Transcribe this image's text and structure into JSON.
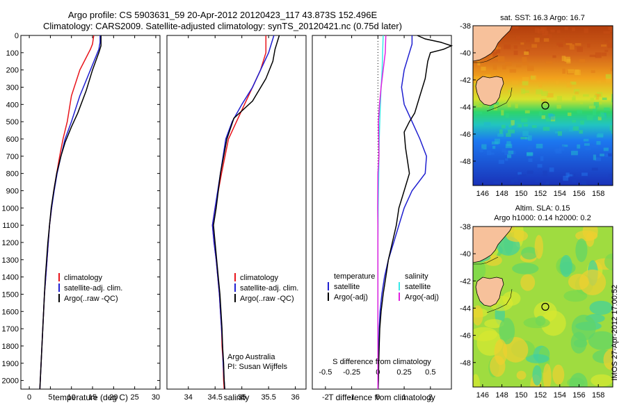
{
  "title": {
    "line1": "Argo profile: CS 5903631_59 20-Apr-2012 20120423_117 43.873S 152.496E",
    "line2": "Climatology: CARS2009. Satellite-adjusted climatology: synTS_20120421.nc (0.75d later)"
  },
  "colors": {
    "climatology": "#e8141b",
    "satellite": "#1f1fd0",
    "argo": "#000000",
    "salinity_satellite": "#38e8e8",
    "salinity_argo": "#e020e0"
  },
  "credits": {
    "line1": "Argo Australia",
    "line2": "PI: Susan Wijffels"
  },
  "stamp": "IMOS 27-Apr-2012 17:00:52",
  "chart_data": [
    {
      "id": "temperature",
      "type": "line",
      "xlabel": "temperature (deg C)",
      "ylabel": "",
      "xlim": [
        -2,
        31
      ],
      "ylim": [
        2050,
        0
      ],
      "xticks": [
        0,
        5,
        10,
        15,
        20,
        25,
        30
      ],
      "yticks": [
        0,
        100,
        200,
        300,
        400,
        500,
        600,
        700,
        800,
        900,
        1000,
        1100,
        1200,
        1300,
        1400,
        1500,
        1600,
        1700,
        1800,
        1900,
        2000
      ],
      "legend": [
        "climatology",
        "satellite-adj. clim.",
        "Argo(..raw -QC)"
      ],
      "series": [
        {
          "name": "climatology",
          "color": "#e8141b",
          "points": [
            [
              15.3,
              0
            ],
            [
              15.0,
              50
            ],
            [
              14.5,
              80
            ],
            [
              12.0,
              200
            ],
            [
              10.0,
              350
            ],
            [
              9.0,
              500
            ],
            [
              8.0,
              600
            ],
            [
              7.2,
              700
            ],
            [
              6.5,
              800
            ],
            [
              5.8,
              900
            ],
            [
              5.3,
              1000
            ],
            [
              4.8,
              1100
            ],
            [
              4.5,
              1200
            ],
            [
              4.2,
              1300
            ],
            [
              3.9,
              1400
            ],
            [
              3.6,
              1500
            ],
            [
              3.4,
              1600
            ],
            [
              3.2,
              1700
            ],
            [
              3.0,
              1800
            ],
            [
              2.8,
              1900
            ],
            [
              2.6,
              2000
            ],
            [
              2.5,
              2050
            ]
          ]
        },
        {
          "name": "satellite-adj. clim.",
          "color": "#1f1fd0",
          "points": [
            [
              16.8,
              0
            ],
            [
              16.8,
              40
            ],
            [
              16.5,
              80
            ],
            [
              14.5,
              200
            ],
            [
              12.0,
              350
            ],
            [
              10.0,
              500
            ],
            [
              8.5,
              600
            ],
            [
              7.5,
              700
            ],
            [
              6.6,
              800
            ],
            [
              5.9,
              900
            ],
            [
              5.3,
              1000
            ],
            [
              4.8,
              1100
            ],
            [
              4.5,
              1200
            ],
            [
              4.2,
              1300
            ],
            [
              3.9,
              1400
            ],
            [
              3.6,
              1500
            ],
            [
              3.4,
              1600
            ],
            [
              3.2,
              1700
            ],
            [
              3.0,
              1800
            ],
            [
              2.8,
              1900
            ],
            [
              2.6,
              2000
            ],
            [
              2.5,
              2050
            ]
          ]
        },
        {
          "name": "Argo(..raw -QC)",
          "color": "#000000",
          "points": [
            [
              17.0,
              0
            ],
            [
              17.0,
              60
            ],
            [
              16.5,
              100
            ],
            [
              15.0,
              200
            ],
            [
              13.5,
              320
            ],
            [
              11.5,
              450
            ],
            [
              10.0,
              530
            ],
            [
              8.5,
              620
            ],
            [
              7.5,
              700
            ],
            [
              6.5,
              800
            ],
            [
              5.8,
              900
            ],
            [
              5.2,
              1000
            ],
            [
              4.8,
              1100
            ],
            [
              4.4,
              1200
            ],
            [
              4.1,
              1300
            ],
            [
              3.8,
              1400
            ],
            [
              3.6,
              1500
            ],
            [
              3.4,
              1600
            ],
            [
              3.2,
              1700
            ],
            [
              3.0,
              1800
            ],
            [
              2.8,
              1900
            ],
            [
              2.6,
              2000
            ],
            [
              2.5,
              2050
            ]
          ]
        }
      ]
    },
    {
      "id": "salinity",
      "type": "line",
      "xlabel": "salinity",
      "ylabel": "",
      "xlim": [
        33.6,
        36.2
      ],
      "ylim": [
        2050,
        0
      ],
      "xticks": [
        34,
        34.5,
        35,
        35.5,
        36
      ],
      "legend": [
        "climatology",
        "satellite-adj. clim.",
        "Argo(..raw -QC)"
      ],
      "series": [
        {
          "name": "climatology",
          "color": "#e8141b",
          "points": [
            [
              35.45,
              0
            ],
            [
              35.45,
              100
            ],
            [
              35.35,
              200
            ],
            [
              35.2,
              300
            ],
            [
              35.05,
              400
            ],
            [
              34.9,
              500
            ],
            [
              34.75,
              600
            ],
            [
              34.62,
              800
            ],
            [
              34.5,
              1000
            ],
            [
              34.45,
              1100
            ],
            [
              34.48,
              1200
            ],
            [
              34.52,
              1300
            ],
            [
              34.55,
              1400
            ],
            [
              34.58,
              1500
            ],
            [
              34.6,
              1600
            ],
            [
              34.62,
              1700
            ],
            [
              34.63,
              1800
            ],
            [
              34.65,
              1900
            ],
            [
              34.66,
              2000
            ],
            [
              34.67,
              2050
            ]
          ]
        },
        {
          "name": "satellite-adj. clim.",
          "color": "#1f1fd0",
          "points": [
            [
              35.6,
              0
            ],
            [
              35.55,
              50
            ],
            [
              35.5,
              100
            ],
            [
              35.35,
              200
            ],
            [
              35.2,
              300
            ],
            [
              35.0,
              400
            ],
            [
              34.82,
              500
            ],
            [
              34.7,
              600
            ],
            [
              34.6,
              800
            ],
            [
              34.5,
              1000
            ],
            [
              34.45,
              1100
            ],
            [
              34.48,
              1200
            ],
            [
              34.52,
              1300
            ],
            [
              34.55,
              1400
            ],
            [
              34.58,
              1500
            ],
            [
              34.6,
              1600
            ],
            [
              34.62,
              1700
            ],
            [
              34.64,
              1800
            ],
            [
              34.65,
              1900
            ],
            [
              34.67,
              2000
            ],
            [
              34.68,
              2050
            ]
          ]
        },
        {
          "name": "Argo(..raw -QC)",
          "color": "#000000",
          "points": [
            [
              35.7,
              0
            ],
            [
              35.62,
              80
            ],
            [
              35.58,
              150
            ],
            [
              35.45,
              250
            ],
            [
              35.2,
              380
            ],
            [
              34.85,
              480
            ],
            [
              34.72,
              600
            ],
            [
              34.6,
              800
            ],
            [
              34.52,
              1000
            ],
            [
              34.47,
              1100
            ],
            [
              34.5,
              1200
            ],
            [
              34.53,
              1300
            ],
            [
              34.56,
              1400
            ],
            [
              34.59,
              1500
            ],
            [
              34.61,
              1600
            ],
            [
              34.63,
              1700
            ],
            [
              34.64,
              1800
            ],
            [
              34.66,
              1900
            ],
            [
              34.67,
              2000
            ],
            [
              34.68,
              2050
            ]
          ]
        }
      ]
    },
    {
      "id": "difference",
      "type": "line",
      "xlabel": "T difference from climatology",
      "xlabel_top": "S difference from climatology",
      "xlim": [
        -2.5,
        2.8
      ],
      "ylim": [
        2050,
        0
      ],
      "xticks": [
        -2,
        -1,
        0,
        1,
        2
      ],
      "xticks_s": [
        -0.5,
        -0.25,
        0,
        0.25,
        0.5
      ],
      "legend_left_title": "temperature",
      "legend_right_title": "salinity",
      "legend": [
        "satellite",
        "Argo(-adj)",
        "satellite",
        "Argo(-adj)"
      ],
      "series": [
        {
          "name": "temperature satellite",
          "color": "#1f1fd0",
          "points": [
            [
              1.3,
              0
            ],
            [
              1.3,
              50
            ],
            [
              1.2,
              100
            ],
            [
              1.0,
              200
            ],
            [
              0.9,
              300
            ],
            [
              1.0,
              400
            ],
            [
              1.3,
              500
            ],
            [
              1.6,
              600
            ],
            [
              1.85,
              700
            ],
            [
              1.8,
              800
            ],
            [
              1.3,
              900
            ],
            [
              1.0,
              1000
            ],
            [
              0.8,
              1100
            ],
            [
              0.6,
              1200
            ],
            [
              0.4,
              1300
            ],
            [
              0.25,
              1400
            ],
            [
              0.15,
              1500
            ],
            [
              0.08,
              1600
            ],
            [
              0.05,
              1700
            ],
            [
              0.03,
              1800
            ],
            [
              0.02,
              1900
            ],
            [
              0.01,
              2000
            ],
            [
              0.0,
              2050
            ]
          ]
        },
        {
          "name": "temperature Argo(-adj)",
          "color": "#000000",
          "points": [
            [
              1.5,
              0
            ],
            [
              1.8,
              20
            ],
            [
              2.4,
              40
            ],
            [
              2.8,
              60
            ],
            [
              2.5,
              80
            ],
            [
              2.0,
              100
            ],
            [
              1.9,
              150
            ],
            [
              1.8,
              250
            ],
            [
              1.6,
              350
            ],
            [
              1.4,
              450
            ],
            [
              1.2,
              500
            ],
            [
              1.0,
              560
            ],
            [
              1.05,
              650
            ],
            [
              1.2,
              800
            ],
            [
              1.0,
              900
            ],
            [
              0.8,
              1000
            ],
            [
              0.7,
              1100
            ],
            [
              0.55,
              1200
            ],
            [
              0.4,
              1300
            ],
            [
              0.3,
              1400
            ],
            [
              0.2,
              1500
            ],
            [
              0.12,
              1600
            ],
            [
              0.07,
              1700
            ],
            [
              0.05,
              1800
            ],
            [
              0.03,
              1900
            ],
            [
              0.02,
              2000
            ],
            [
              0.01,
              2050
            ]
          ]
        },
        {
          "name": "salinity satellite",
          "color": "#38e8e8",
          "points": [
            [
              0.2,
              0
            ],
            [
              0.18,
              100
            ],
            [
              0.16,
              200
            ],
            [
              0.12,
              300
            ],
            [
              0.08,
              450
            ],
            [
              0.05,
              600
            ],
            [
              0.03,
              800
            ],
            [
              0.01,
              1000
            ],
            [
              0.0,
              1200
            ],
            [
              0.0,
              1500
            ],
            [
              0.0,
              2050
            ]
          ]
        },
        {
          "name": "salinity Argo(-adj)",
          "color": "#e020e0",
          "points": [
            [
              0.3,
              0
            ],
            [
              0.28,
              100
            ],
            [
              0.24,
              150
            ],
            [
              0.2,
              200
            ],
            [
              0.12,
              300
            ],
            [
              0.06,
              400
            ],
            [
              0.02,
              500
            ],
            [
              0.04,
              700
            ],
            [
              0.0,
              800
            ],
            [
              -0.01,
              1000
            ],
            [
              0.0,
              1100
            ],
            [
              0.0,
              1300
            ],
            [
              0.0,
              1600
            ],
            [
              0.0,
              2050
            ]
          ]
        }
      ]
    },
    {
      "id": "sst-map",
      "type": "heatmap",
      "title": "sat. SST: 16.3 Argo: 16.7",
      "xticks": [
        146,
        148,
        150,
        152,
        154,
        156,
        158
      ],
      "yticks": [
        -38,
        -40,
        -42,
        -44,
        -46,
        -48
      ],
      "xlim": [
        145,
        159.5
      ],
      "ylim": [
        -38,
        -49.8
      ],
      "argo_position": {
        "lon": 152.5,
        "lat": -43.9
      }
    },
    {
      "id": "sla-map",
      "type": "heatmap",
      "title": "Altim. SLA: 0.15",
      "subtitle": "Argo h1000: 0.14 h2000: 0.2",
      "xticks": [
        146,
        148,
        150,
        152,
        154,
        156,
        158
      ],
      "yticks": [
        -38,
        -40,
        -42,
        -44,
        -46,
        -48
      ],
      "xlim": [
        145,
        159.5
      ],
      "ylim": [
        -38,
        -49.8
      ],
      "argo_position": {
        "lon": 152.5,
        "lat": -43.9
      }
    }
  ]
}
